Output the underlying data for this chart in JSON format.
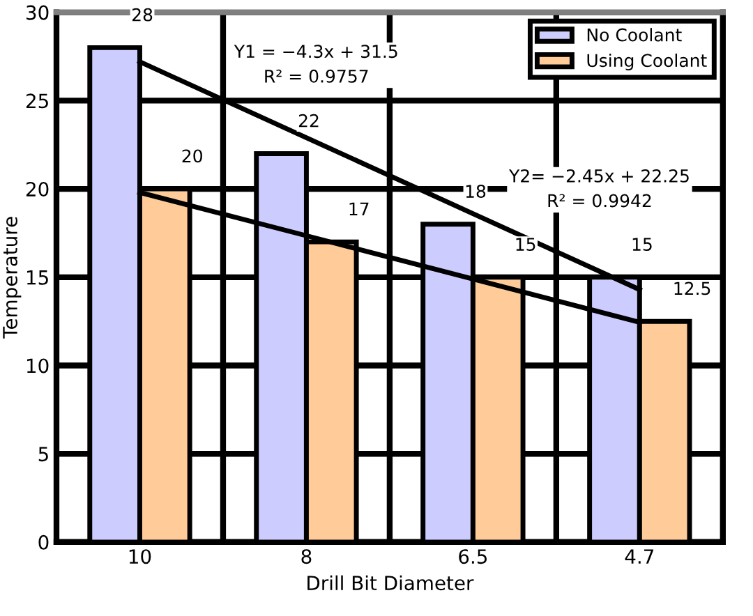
{
  "chart_data": {
    "type": "bar",
    "xlabel": "Drill Bit Diameter",
    "ylabel": "Temperature",
    "categories": [
      "10",
      "8",
      "6.5",
      "4.7"
    ],
    "series": [
      {
        "name": "No Coolant",
        "color": "#ccccff",
        "values": [
          28,
          22,
          18,
          15
        ],
        "data_labels": true
      },
      {
        "name": "Using Coolant",
        "color": "#ffcc99",
        "values": [
          20,
          17,
          15,
          12.5
        ],
        "data_labels": true
      },
      {
        "type": "line",
        "color": "#000000",
        "values": [
          27.2,
          22.9,
          18.6,
          14.3
        ]
      },
      {
        "type": "line",
        "color": "#000000",
        "values": [
          19.8,
          17.35,
          14.9,
          12.45
        ]
      }
    ],
    "annotations": [
      "Y1 = −4.3x + 31.5\nR² = 0.9757",
      "Y2= −2.45x + 22.25\nR² = 0.9942"
    ],
    "ylim": [
      0,
      30
    ],
    "yticks": [
      0,
      5,
      10,
      15,
      20,
      25,
      30
    ],
    "grid": true,
    "legend": "top right"
  }
}
